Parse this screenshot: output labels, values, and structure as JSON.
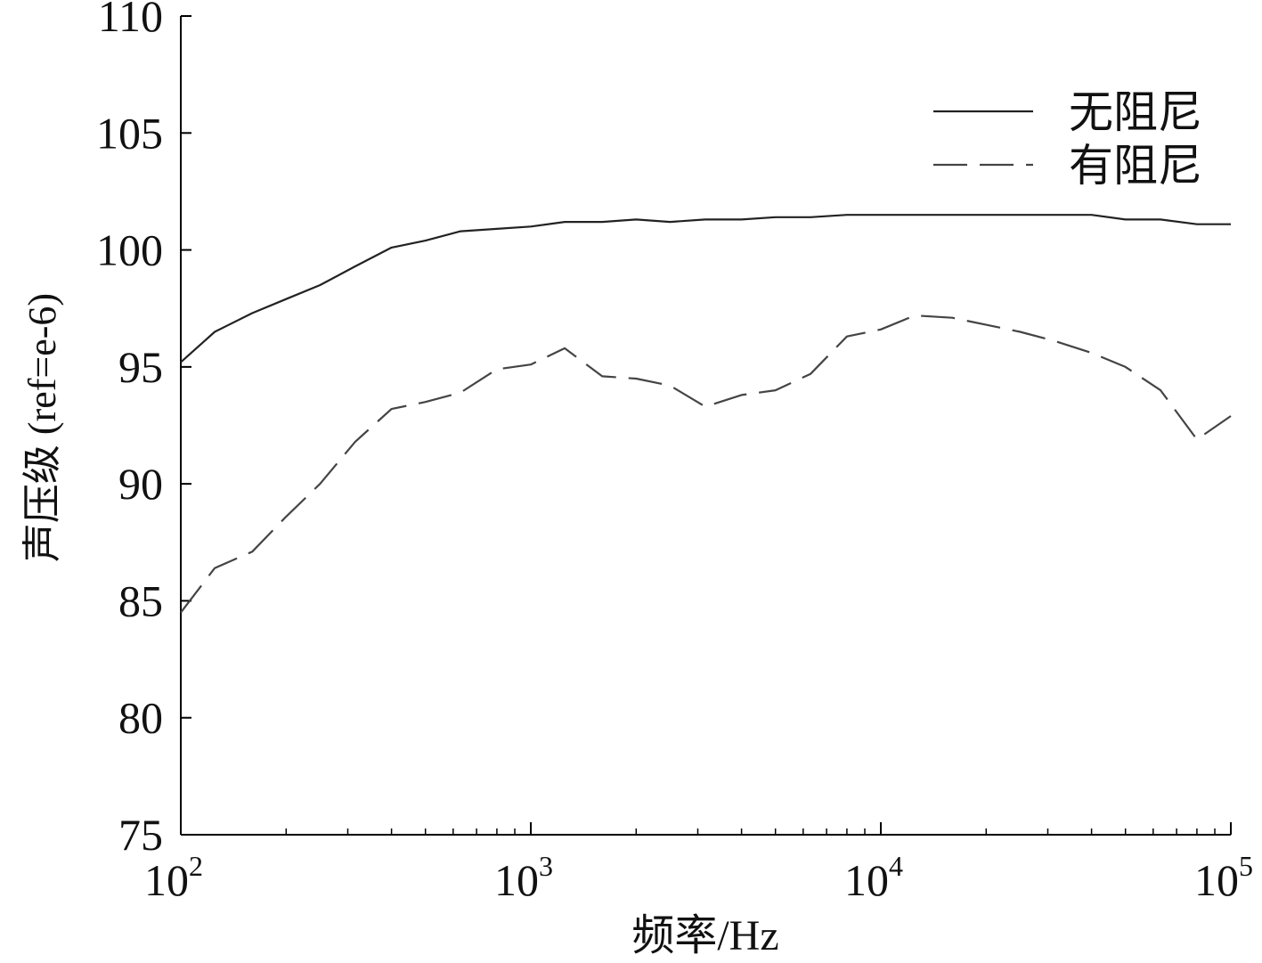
{
  "chart_data": {
    "type": "line",
    "title": "",
    "xlabel": "频率/Hz",
    "ylabel": "声压级 (ref=e-6)",
    "x_scale": "log",
    "xlim": [
      100,
      100000
    ],
    "ylim": [
      75,
      110
    ],
    "y_ticks": [
      75,
      80,
      85,
      90,
      95,
      100,
      105,
      110
    ],
    "x_ticks": [
      {
        "value": 100,
        "base": "10",
        "exp": "2"
      },
      {
        "value": 1000,
        "base": "10",
        "exp": "3"
      },
      {
        "value": 10000,
        "base": "10",
        "exp": "4"
      },
      {
        "value": 100000,
        "base": "10",
        "exp": "5"
      }
    ],
    "grid": false,
    "legend_position": "top-right",
    "series": [
      {
        "name": "无阻尼",
        "style": "solid",
        "color": "#222222",
        "x": [
          100,
          125,
          160,
          200,
          250,
          315,
          400,
          500,
          630,
          800,
          1000,
          1250,
          1600,
          2000,
          2500,
          3150,
          4000,
          5000,
          6300,
          8000,
          10000,
          12500,
          16000,
          20000,
          25000,
          31500,
          40000,
          50000,
          63000,
          80000,
          100000
        ],
        "y": [
          95.2,
          96.5,
          97.3,
          97.9,
          98.5,
          99.3,
          100.1,
          100.4,
          100.8,
          100.9,
          101.0,
          101.2,
          101.2,
          101.3,
          101.2,
          101.3,
          101.3,
          101.4,
          101.4,
          101.5,
          101.5,
          101.5,
          101.5,
          101.5,
          101.5,
          101.5,
          101.5,
          101.3,
          101.3,
          101.1,
          101.1
        ]
      },
      {
        "name": "有阻尼",
        "style": "dashed",
        "color": "#444444",
        "x": [
          100,
          125,
          160,
          200,
          250,
          315,
          400,
          500,
          630,
          800,
          1000,
          1250,
          1600,
          2000,
          2500,
          3150,
          4000,
          5000,
          6300,
          8000,
          10000,
          12500,
          16000,
          20000,
          25000,
          31500,
          40000,
          50000,
          63000,
          80000,
          100000
        ],
        "y": [
          84.5,
          86.4,
          87.1,
          88.6,
          90.0,
          91.8,
          93.2,
          93.5,
          93.9,
          94.9,
          95.1,
          95.8,
          94.6,
          94.5,
          94.2,
          93.3,
          93.8,
          94.0,
          94.7,
          96.3,
          96.6,
          97.2,
          97.1,
          96.8,
          96.5,
          96.1,
          95.6,
          95.0,
          94.0,
          91.9,
          92.9
        ]
      }
    ]
  }
}
